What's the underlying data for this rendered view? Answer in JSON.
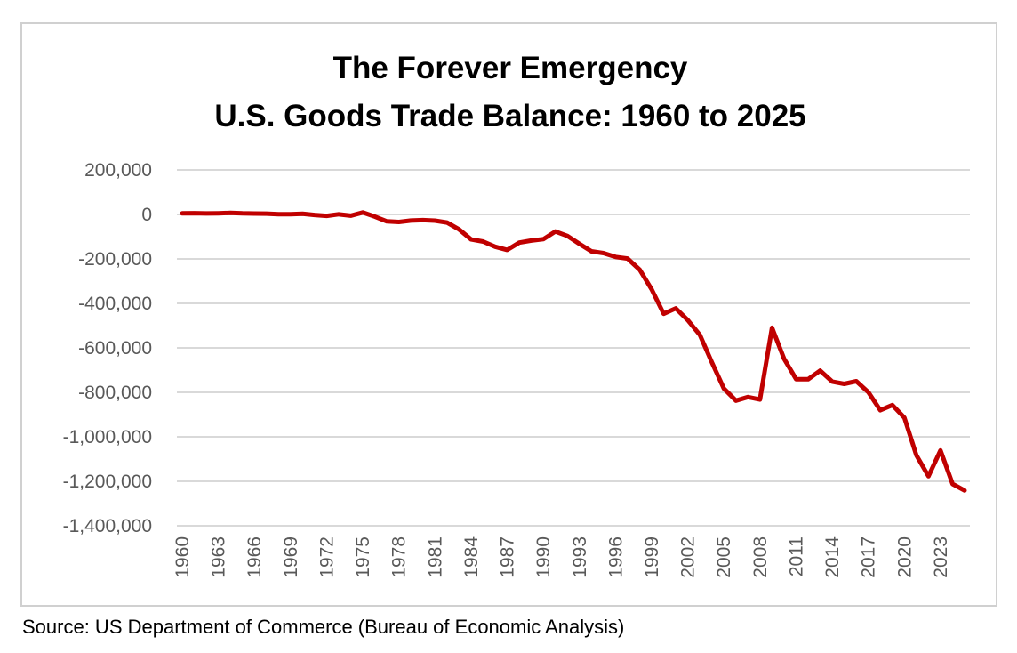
{
  "chart_data": {
    "type": "line",
    "title_line1": "The Forever Emergency",
    "title_line2": "U.S. Goods Trade Balance: 1960 to 2025",
    "xlabel": "",
    "ylabel": "",
    "ylim": [
      -1400000,
      200000
    ],
    "y_ticks": [
      200000,
      0,
      -200000,
      -400000,
      -600000,
      -800000,
      -1000000,
      -1200000,
      -1400000
    ],
    "y_tick_labels": [
      "200,000",
      "0",
      "-200,000",
      "-400,000",
      "-600,000",
      "-800,000",
      "-1,000,000",
      "-1,200,000",
      "-1,400,000"
    ],
    "x_tick_labels": [
      "1960",
      "1963",
      "1966",
      "1969",
      "1972",
      "1975",
      "1978",
      "1981",
      "1984",
      "1987",
      "1990",
      "1993",
      "1996",
      "1999",
      "2002",
      "2005",
      "2008",
      "2011",
      "2014",
      "2017",
      "2020",
      "2023"
    ],
    "grid": true,
    "legend": "none",
    "series": [
      {
        "name": "U.S. Goods Trade Balance",
        "color": "#c00000",
        "x": [
          1960,
          1961,
          1962,
          1963,
          1964,
          1965,
          1966,
          1967,
          1968,
          1969,
          1970,
          1971,
          1972,
          1973,
          1974,
          1975,
          1976,
          1977,
          1978,
          1979,
          1980,
          1981,
          1982,
          1983,
          1984,
          1985,
          1986,
          1987,
          1988,
          1989,
          1990,
          1991,
          1992,
          1993,
          1994,
          1995,
          1996,
          1997,
          1998,
          1999,
          2000,
          2001,
          2002,
          2003,
          2004,
          2005,
          2006,
          2007,
          2008,
          2009,
          2010,
          2011,
          2012,
          2013,
          2014,
          2015,
          2016,
          2017,
          2018,
          2019,
          2020,
          2021,
          2022,
          2023,
          2024,
          2025
        ],
        "values": [
          4892,
          5571,
          4521,
          5224,
          6801,
          4951,
          3817,
          3800,
          635,
          607,
          2603,
          -2260,
          -6416,
          911,
          -5505,
          8903,
          -9483,
          -31091,
          -33927,
          -27568,
          -25500,
          -28023,
          -36485,
          -67102,
          -112492,
          -122173,
          -145081,
          -159557,
          -126959,
          -117749,
          -111037,
          -76937,
          -96897,
          -132451,
          -165831,
          -174170,
          -191000,
          -198428,
          -248221,
          -337068,
          -446783,
          -422370,
          -475245,
          -541643,
          -664766,
          -782804,
          -837289,
          -821196,
          -832492,
          -509694,
          -648678,
          -740999,
          -741119,
          -702244,
          -751531,
          -761868,
          -749801,
          -799343,
          -880300,
          -857258,
          -913937,
          -1083000,
          -1177000,
          -1061000,
          -1212000,
          -1241000
        ]
      }
    ],
    "source": "Source: US Department of Commerce (Bureau of Economic Analysis)"
  }
}
